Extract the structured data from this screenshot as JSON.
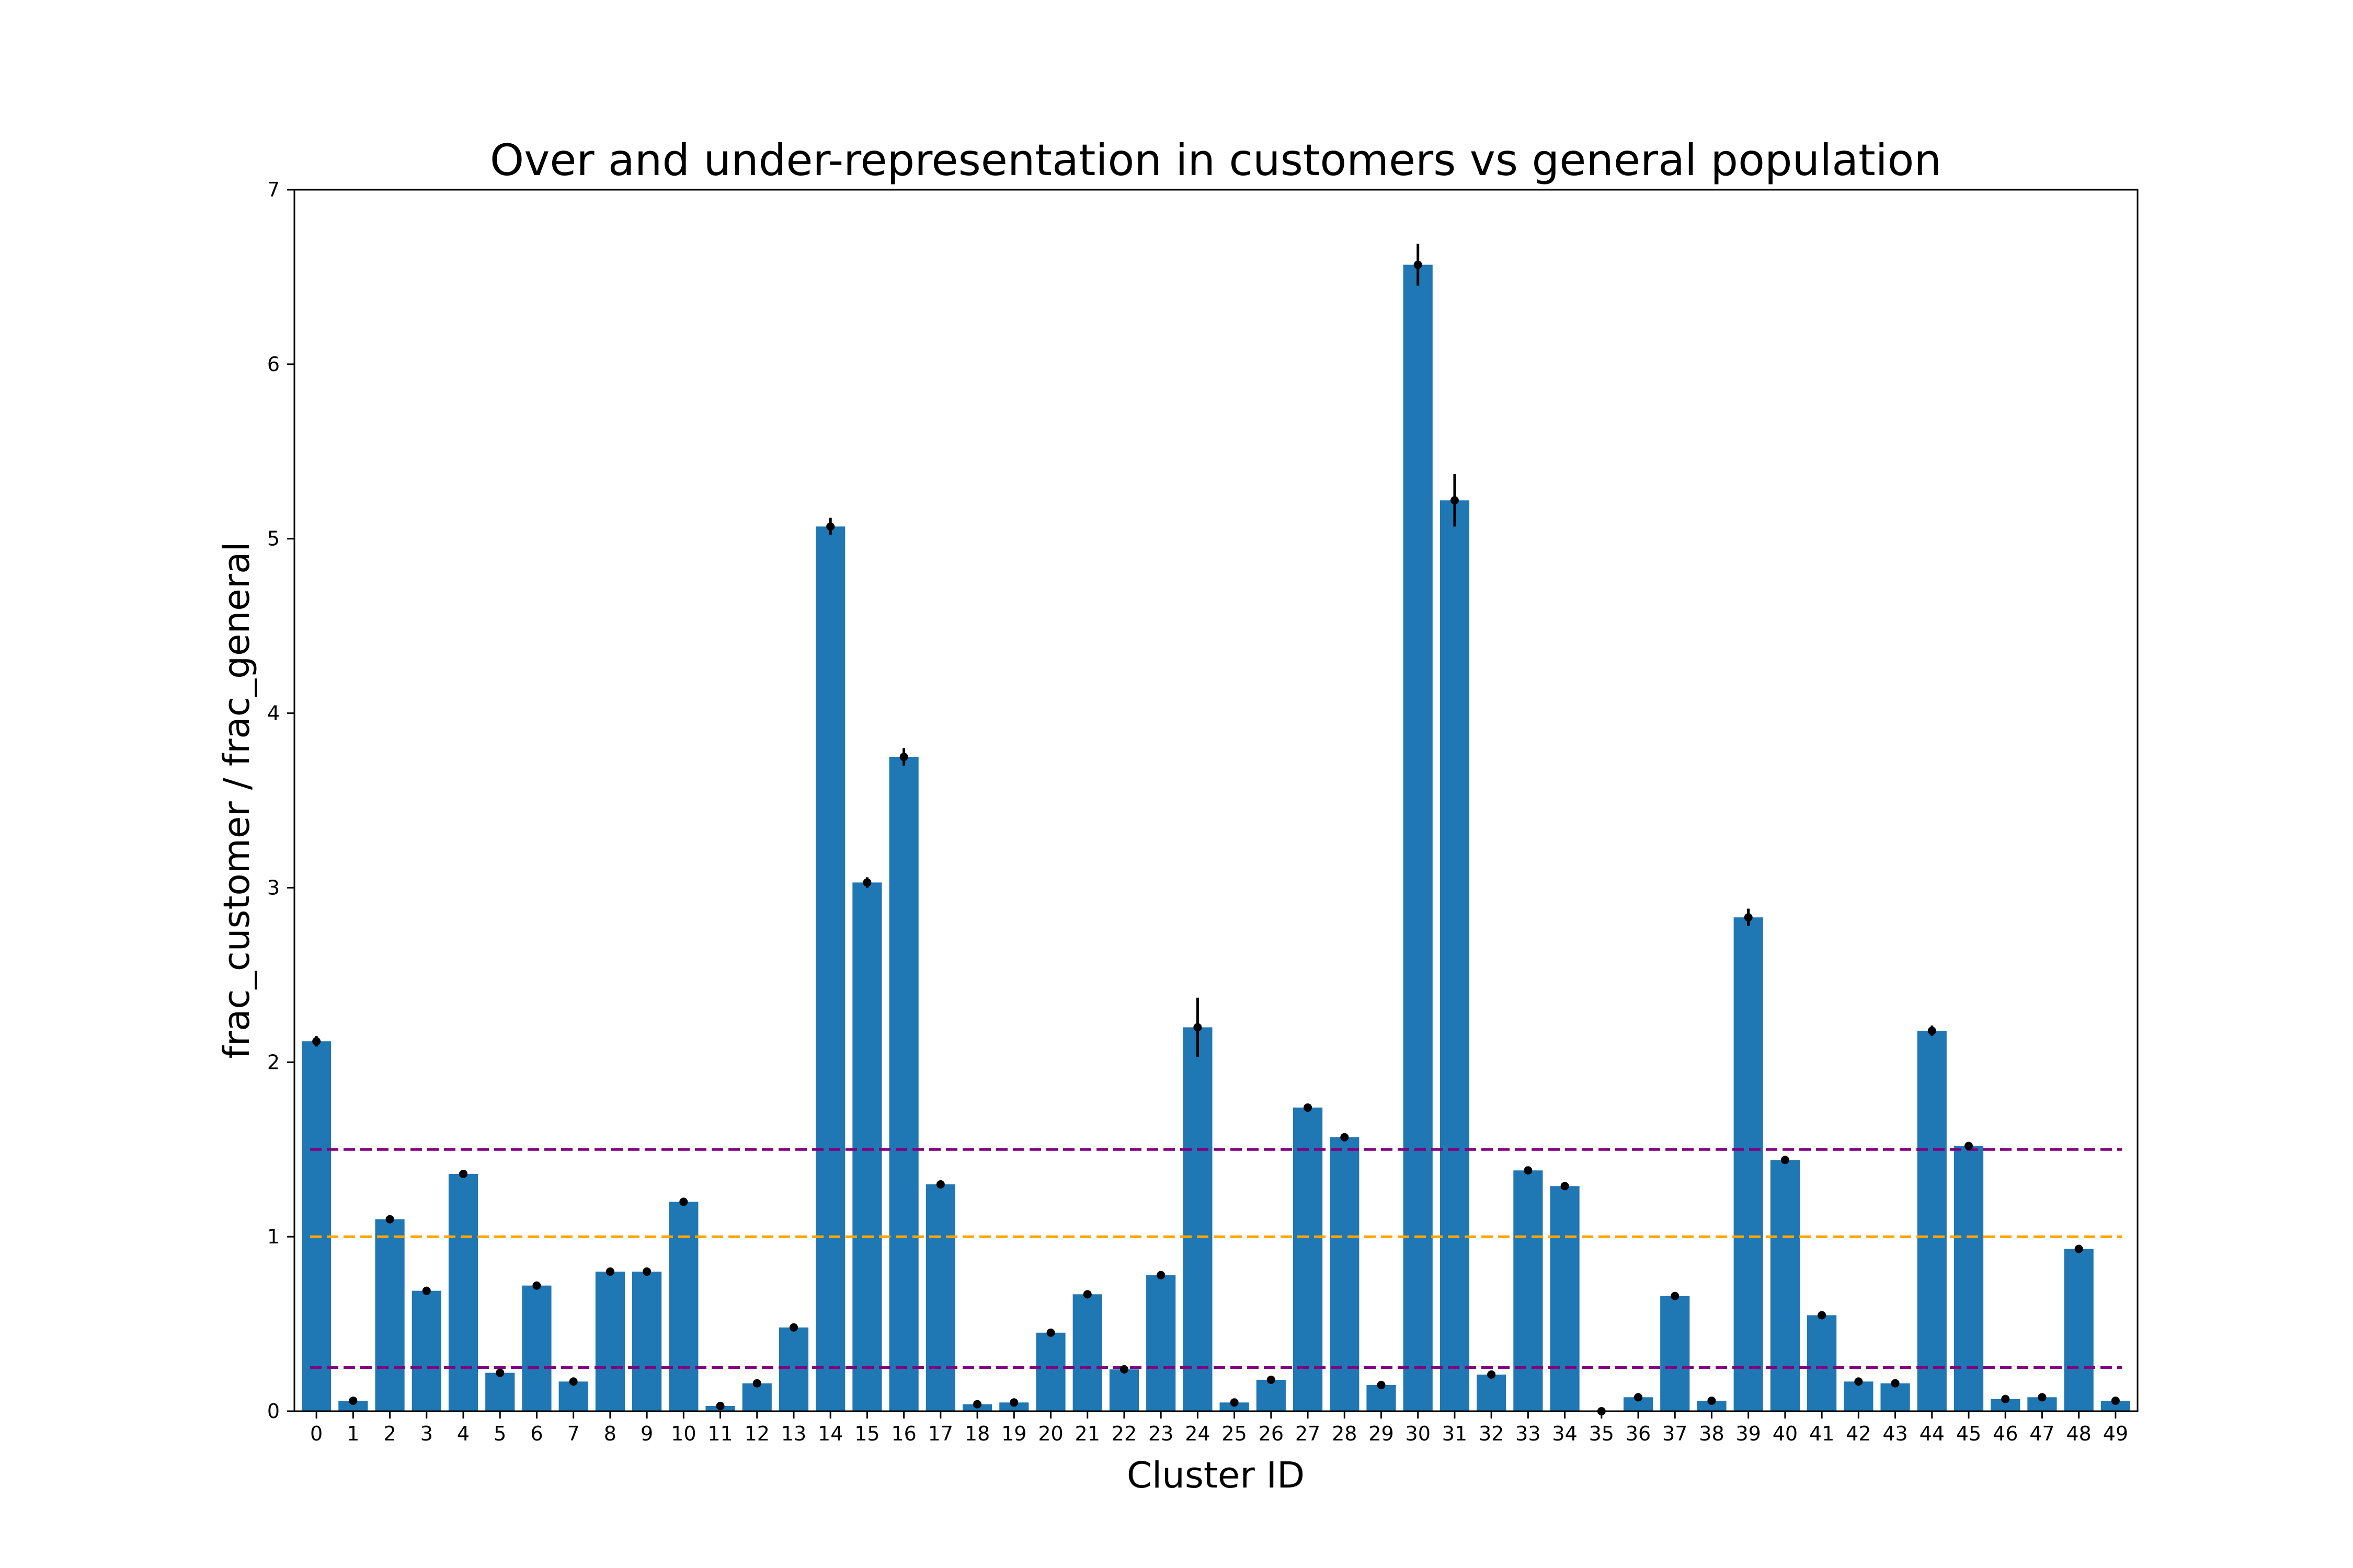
{
  "chart_data": {
    "type": "bar",
    "title": "Over and under-representation in customers vs general population",
    "xlabel": "Cluster ID",
    "ylabel": "frac_customer / frac_general",
    "ylim": [
      0,
      7
    ],
    "yticks": [
      0,
      1,
      2,
      3,
      4,
      5,
      6,
      7
    ],
    "categories": [
      "0",
      "1",
      "2",
      "3",
      "4",
      "5",
      "6",
      "7",
      "8",
      "9",
      "10",
      "11",
      "12",
      "13",
      "14",
      "15",
      "16",
      "17",
      "18",
      "19",
      "20",
      "21",
      "22",
      "23",
      "24",
      "25",
      "26",
      "27",
      "28",
      "29",
      "30",
      "31",
      "32",
      "33",
      "34",
      "35",
      "36",
      "37",
      "38",
      "39",
      "40",
      "41",
      "42",
      "43",
      "44",
      "45",
      "46",
      "47",
      "48",
      "49"
    ],
    "values": [
      2.12,
      0.06,
      1.1,
      0.69,
      1.36,
      0.22,
      0.72,
      0.17,
      0.8,
      0.8,
      1.2,
      0.03,
      0.16,
      0.48,
      5.07,
      3.03,
      3.75,
      1.3,
      0.04,
      0.05,
      0.45,
      0.67,
      0.24,
      0.78,
      2.2,
      0.05,
      0.18,
      1.74,
      1.57,
      0.15,
      6.57,
      5.22,
      0.21,
      1.38,
      1.29,
      0.0,
      0.08,
      0.66,
      0.06,
      2.83,
      1.44,
      0.55,
      0.17,
      0.16,
      2.18,
      1.52,
      0.07,
      0.08,
      0.93,
      0.06
    ],
    "errors": [
      0.03,
      0.01,
      0.01,
      0.01,
      0.01,
      0.02,
      0.01,
      0.01,
      0.01,
      0.01,
      0.01,
      0.005,
      0.01,
      0.01,
      0.05,
      0.03,
      0.05,
      0.02,
      0.01,
      0.01,
      0.01,
      0.01,
      0.01,
      0.01,
      0.17,
      0.01,
      0.01,
      0.02,
      0.02,
      0.01,
      0.12,
      0.15,
      0.01,
      0.01,
      0.01,
      0.005,
      0.01,
      0.01,
      0.01,
      0.05,
      0.02,
      0.01,
      0.01,
      0.01,
      0.03,
      0.02,
      0.01,
      0.01,
      0.01,
      0.01
    ],
    "reference_lines": [
      {
        "y": 1.5,
        "color": "#800080",
        "style": "dashed"
      },
      {
        "y": 1.0,
        "color": "#ffa500",
        "style": "dashed"
      },
      {
        "y": 0.25,
        "color": "#800080",
        "style": "dashed"
      }
    ],
    "bar_color": "#1f77b4",
    "marker_color": "#000000",
    "grid": false,
    "legend": "none"
  }
}
